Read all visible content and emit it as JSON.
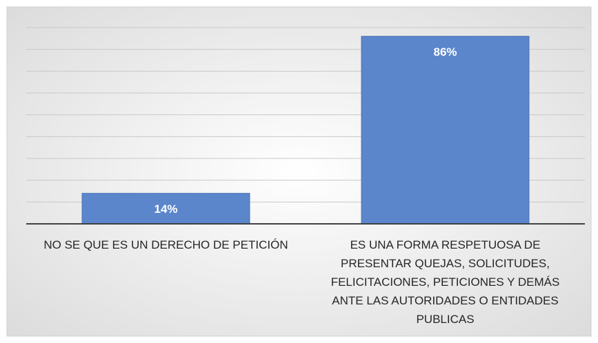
{
  "chart_data": {
    "type": "bar",
    "categories": [
      "NO SE QUE ES UN DERECHO DE PETICIÓN",
      "ES UNA FORMA RESPETUOSA DE PRESENTAR QUEJAS, SOLICITUDES, FELICITACIONES, PETICIONES Y DEMÁS ANTE LAS AUTORIDADES O ENTIDADES PUBLICAS"
    ],
    "values": [
      14,
      86
    ],
    "value_labels": [
      "14%",
      "86%"
    ],
    "color": "#5b86cc",
    "ylim": [
      0,
      90
    ],
    "yticks": [
      0,
      10,
      20,
      30,
      40,
      50,
      60,
      70,
      80,
      90
    ],
    "grid": true
  }
}
